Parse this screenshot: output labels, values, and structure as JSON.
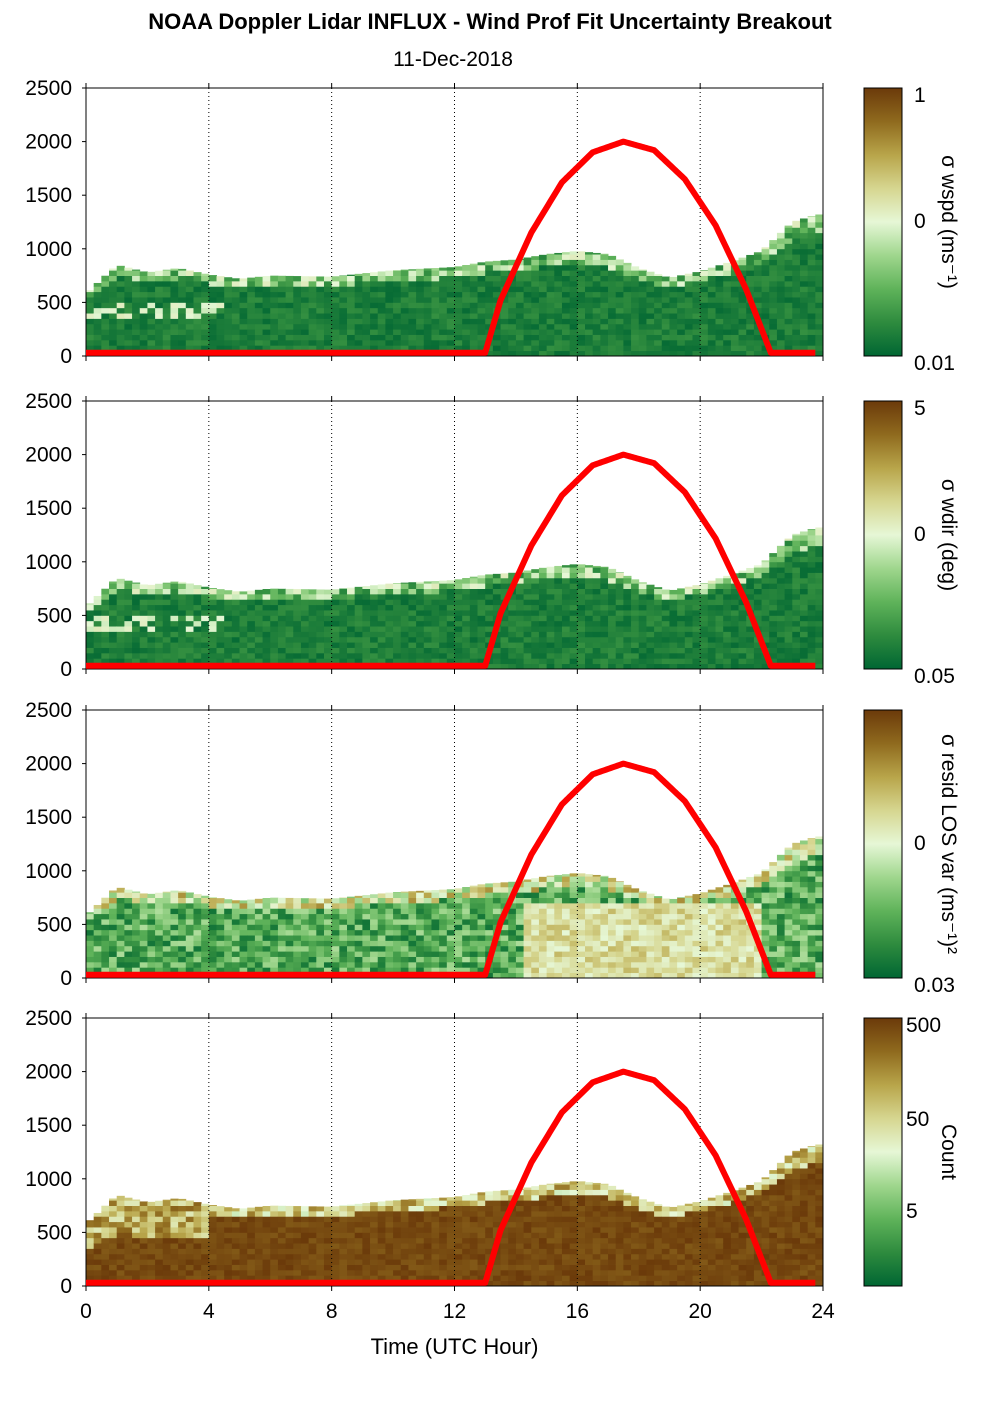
{
  "title": "NOAA Doppler Lidar INFLUX - Wind Prof Fit Uncertainty Breakout",
  "subtitle": "11-Dec-2018",
  "colors": {
    "sun_curve": "#ff0000",
    "colormap": [
      "#006633",
      "#2e8b3e",
      "#5fb35a",
      "#9fd68d",
      "#e6f7d6",
      "#d6d690",
      "#b8a54a",
      "#8f6a1e",
      "#6b3a0a"
    ]
  },
  "chart_data": [
    {
      "type": "heatmap",
      "name": "sigma wspd",
      "xlabel": "",
      "ylabel": "",
      "xlim": [
        0,
        24
      ],
      "ylim": [
        0,
        2500
      ],
      "yticks": [
        0,
        500,
        1000,
        1500,
        2000,
        2500
      ],
      "xticks": [
        0,
        4,
        8,
        12,
        16,
        20,
        24
      ],
      "grid_x": [
        4,
        8,
        12,
        16,
        20,
        24
      ],
      "colorbar": {
        "label": "σ wspd (ms⁻¹)",
        "ticklabels": [
          "1",
          "0",
          "0.01"
        ],
        "scale": "log"
      },
      "top_height_m": [
        [
          0,
          580
        ],
        [
          1,
          850
        ],
        [
          2,
          780
        ],
        [
          3,
          820
        ],
        [
          4,
          760
        ],
        [
          5,
          720
        ],
        [
          6,
          750
        ],
        [
          8,
          740
        ],
        [
          10,
          800
        ],
        [
          12,
          830
        ],
        [
          13,
          880
        ],
        [
          14,
          900
        ],
        [
          15,
          950
        ],
        [
          16,
          980
        ],
        [
          17,
          950
        ],
        [
          18,
          820
        ],
        [
          19,
          730
        ],
        [
          20,
          790
        ],
        [
          21,
          880
        ],
        [
          22,
          980
        ],
        [
          23,
          1250
        ],
        [
          23.8,
          1320
        ]
      ],
      "sun_elevation_curve": [
        [
          0,
          30
        ],
        [
          13,
          30
        ],
        [
          13.5,
          520
        ],
        [
          14.5,
          1150
        ],
        [
          15.5,
          1620
        ],
        [
          16.5,
          1900
        ],
        [
          17.5,
          2000
        ],
        [
          18.5,
          1920
        ],
        [
          19.5,
          1650
        ],
        [
          20.5,
          1220
        ],
        [
          21.5,
          620
        ],
        [
          22.3,
          30
        ],
        [
          24,
          30
        ]
      ]
    },
    {
      "type": "heatmap",
      "name": "sigma wdir",
      "xlabel": "",
      "ylabel": "",
      "xlim": [
        0,
        24
      ],
      "ylim": [
        0,
        2500
      ],
      "yticks": [
        0,
        500,
        1000,
        1500,
        2000,
        2500
      ],
      "xticks": [
        0,
        4,
        8,
        12,
        16,
        20,
        24
      ],
      "grid_x": [
        4,
        8,
        12,
        16,
        20,
        24
      ],
      "colorbar": {
        "label": "σ wdir (deg)",
        "ticklabels": [
          "5",
          "0",
          "0.05"
        ],
        "scale": "log"
      },
      "top_height_m": [
        [
          0,
          580
        ],
        [
          1,
          850
        ],
        [
          2,
          780
        ],
        [
          3,
          820
        ],
        [
          4,
          760
        ],
        [
          5,
          720
        ],
        [
          6,
          750
        ],
        [
          8,
          740
        ],
        [
          10,
          800
        ],
        [
          12,
          830
        ],
        [
          13,
          880
        ],
        [
          14,
          900
        ],
        [
          15,
          950
        ],
        [
          16,
          980
        ],
        [
          17,
          950
        ],
        [
          18,
          820
        ],
        [
          19,
          730
        ],
        [
          20,
          790
        ],
        [
          21,
          880
        ],
        [
          22,
          980
        ],
        [
          23,
          1250
        ],
        [
          23.8,
          1320
        ]
      ],
      "sun_elevation_curve": [
        [
          0,
          30
        ],
        [
          13,
          30
        ],
        [
          13.5,
          520
        ],
        [
          14.5,
          1150
        ],
        [
          15.5,
          1620
        ],
        [
          16.5,
          1900
        ],
        [
          17.5,
          2000
        ],
        [
          18.5,
          1920
        ],
        [
          19.5,
          1650
        ],
        [
          20.5,
          1220
        ],
        [
          21.5,
          620
        ],
        [
          22.3,
          30
        ],
        [
          24,
          30
        ]
      ]
    },
    {
      "type": "heatmap",
      "name": "sigma resid LOS var",
      "xlabel": "",
      "ylabel": "",
      "xlim": [
        0,
        24
      ],
      "ylim": [
        0,
        2500
      ],
      "yticks": [
        0,
        500,
        1000,
        1500,
        2000,
        2500
      ],
      "xticks": [
        0,
        4,
        8,
        12,
        16,
        20,
        24
      ],
      "grid_x": [
        4,
        8,
        12,
        16,
        20,
        24
      ],
      "colorbar": {
        "label": "σ resid LOS var (ms⁻¹)²",
        "ticklabels": [
          "",
          "0",
          "0.03"
        ],
        "scale": "log"
      },
      "top_height_m": [
        [
          0,
          580
        ],
        [
          1,
          850
        ],
        [
          2,
          780
        ],
        [
          3,
          820
        ],
        [
          4,
          760
        ],
        [
          5,
          720
        ],
        [
          6,
          750
        ],
        [
          8,
          740
        ],
        [
          10,
          800
        ],
        [
          12,
          830
        ],
        [
          13,
          880
        ],
        [
          14,
          900
        ],
        [
          15,
          950
        ],
        [
          16,
          980
        ],
        [
          17,
          950
        ],
        [
          18,
          820
        ],
        [
          19,
          730
        ],
        [
          20,
          790
        ],
        [
          21,
          880
        ],
        [
          22,
          980
        ],
        [
          23,
          1250
        ],
        [
          23.8,
          1320
        ]
      ],
      "sun_elevation_curve": [
        [
          0,
          30
        ],
        [
          13,
          30
        ],
        [
          13.5,
          520
        ],
        [
          14.5,
          1150
        ],
        [
          15.5,
          1620
        ],
        [
          16.5,
          1900
        ],
        [
          17.5,
          2000
        ],
        [
          18.5,
          1920
        ],
        [
          19.5,
          1650
        ],
        [
          20.5,
          1220
        ],
        [
          21.5,
          620
        ],
        [
          22.3,
          30
        ],
        [
          24,
          30
        ]
      ]
    },
    {
      "type": "heatmap",
      "name": "count",
      "xlabel": "Time (UTC Hour)",
      "ylabel": "",
      "xlim": [
        0,
        24
      ],
      "ylim": [
        0,
        2500
      ],
      "yticks": [
        0,
        500,
        1000,
        1500,
        2000,
        2500
      ],
      "xticks": [
        0,
        4,
        8,
        12,
        16,
        20,
        24
      ],
      "grid_x": [
        4,
        8,
        12,
        16,
        20,
        24
      ],
      "colorbar": {
        "label": "Count",
        "ticklabels": [
          "500",
          "50",
          "5"
        ],
        "scale": "log"
      },
      "top_height_m": [
        [
          0,
          580
        ],
        [
          1,
          850
        ],
        [
          2,
          780
        ],
        [
          3,
          820
        ],
        [
          4,
          760
        ],
        [
          5,
          720
        ],
        [
          6,
          750
        ],
        [
          8,
          740
        ],
        [
          10,
          800
        ],
        [
          12,
          830
        ],
        [
          13,
          880
        ],
        [
          14,
          900
        ],
        [
          15,
          950
        ],
        [
          16,
          980
        ],
        [
          17,
          950
        ],
        [
          18,
          820
        ],
        [
          19,
          730
        ],
        [
          20,
          790
        ],
        [
          21,
          880
        ],
        [
          22,
          980
        ],
        [
          23,
          1250
        ],
        [
          23.8,
          1320
        ]
      ],
      "sun_elevation_curve": [
        [
          0,
          30
        ],
        [
          13,
          30
        ],
        [
          13.5,
          520
        ],
        [
          14.5,
          1150
        ],
        [
          15.5,
          1620
        ],
        [
          16.5,
          1900
        ],
        [
          17.5,
          2000
        ],
        [
          18.5,
          1920
        ],
        [
          19.5,
          1650
        ],
        [
          20.5,
          1220
        ],
        [
          21.5,
          620
        ],
        [
          22.3,
          30
        ],
        [
          24,
          30
        ]
      ]
    }
  ]
}
